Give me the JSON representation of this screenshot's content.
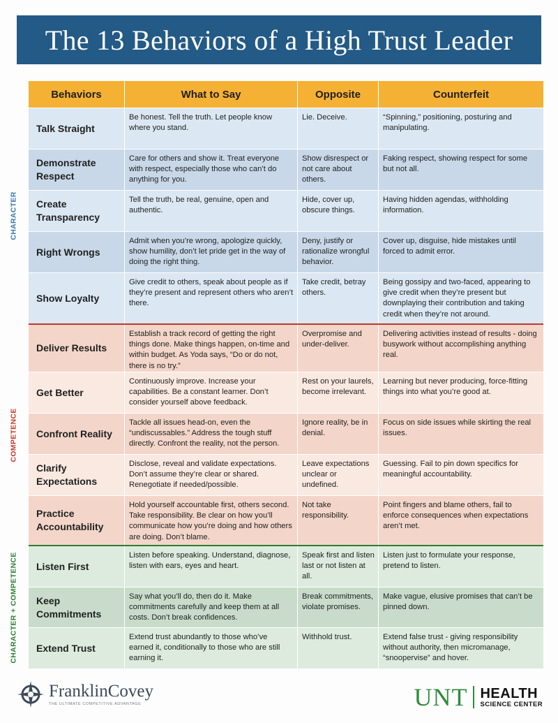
{
  "title": "The 13 Behaviors of a High Trust Leader",
  "headers": [
    "Behaviors",
    "What to Say",
    "Opposite",
    "Counterfeit"
  ],
  "side_labels": {
    "character": "CHARACTER",
    "competence": "COMPETENCE",
    "both": "CHARACTER + COMPETENCE"
  },
  "rows": [
    {
      "behavior": "Talk Straight",
      "say": "Be honest. Tell the truth. Let people know where you stand.",
      "opposite": "Lie. Deceive.",
      "counterfeit": "“Spinning,” positioning, posturing and manipulating."
    },
    {
      "behavior": "Demonstrate Respect",
      "say": "Care for others and show it. Treat everyone with respect, especially those who can’t do anything for you.",
      "opposite": "Show disrespect or not care about others.",
      "counterfeit": "Faking respect, showing respect for some but not all."
    },
    {
      "behavior": "Create Transparency",
      "say": "Tell the truth, be real, genuine, open and authentic.",
      "opposite": "Hide, cover up, obscure things.",
      "counterfeit": "Having hidden agendas, withholding information."
    },
    {
      "behavior": "Right Wrongs",
      "say": "Admit when you’re wrong, apologize quickly, show humility, don’t let pride get in the way of doing the right thing.",
      "opposite": "Deny, justify or rationalize wrongful behavior.",
      "counterfeit": "Cover up, disguise, hide mistakes until forced to admit error."
    },
    {
      "behavior": "Show Loyalty",
      "say": "Give credit to others, speak about people as if they’re present and represent others who aren’t there.",
      "opposite": "Take credit, betray others.",
      "counterfeit": "Being gossipy and two-faced, appearing to give credit when they’re present but downplaying their contribution and taking credit when they’re not around."
    },
    {
      "behavior": "Deliver Results",
      "say": "Establish a track record of getting the right things done. Make things happen, on-time and within budget. As Yoda says, “Do or do not, there is no try.”",
      "opposite": "Overpromise and under-deliver.",
      "counterfeit": "Delivering activities instead of results - doing busywork without accomplishing anything real."
    },
    {
      "behavior": "Get Better",
      "say": "Continuously improve. Increase your capabilities. Be a constant learner. Don’t consider yourself above feedback.",
      "opposite": "Rest on your laurels, become irrelevant.",
      "counterfeit": "Learning but never producing, force-fitting things into what you’re good at."
    },
    {
      "behavior": "Confront Reality",
      "say": "Tackle all issues head-on, even the “undiscussables.” Address the tough stuff directly. Confront the reality, not the person.",
      "opposite": "Ignore reality, be in denial.",
      "counterfeit": "Focus on side issues while skirting the real issues."
    },
    {
      "behavior": "Clarify Expectations",
      "say": "Disclose, reveal and validate expectations. Don’t assume they’re clear or shared. Renegotiate if needed/possible.",
      "opposite": "Leave expectations unclear or undefined.",
      "counterfeit": "Guessing. Fail to pin down specifics for meaningful accountability."
    },
    {
      "behavior": "Practice Accountability",
      "say": "Hold yourself accountable first, others second. Take responsibility. Be clear on how you’ll communicate how you’re doing and how others are doing. Don’t blame.",
      "opposite": "Not take responsibility.",
      "counterfeit": "Point fingers and blame others, fail to enforce consequences when expectations aren’t met."
    },
    {
      "behavior": "Listen First",
      "say": "Listen before speaking. Understand, diagnose, listen with ears, eyes and heart.",
      "opposite": "Speak first and listen last or not listen at all.",
      "counterfeit": "Listen just to formulate your response, pretend to listen."
    },
    {
      "behavior": "Keep Commitments",
      "say": "Say what you’ll do, then do it. Make commitments carefully and keep them at all costs. Don’t break confidences.",
      "opposite": "Break commitments, violate promises.",
      "counterfeit": "Make vague, elusive promises that can’t be pinned down."
    },
    {
      "behavior": "Extend Trust",
      "say": "Extend trust abundantly to those who’ve earned it, conditionally to those who are still earning it.",
      "opposite": "Withhold trust.",
      "counterfeit": "Extend false trust - giving responsibility without authority, then micromanage, “snoopervise” and hover."
    }
  ],
  "footer": {
    "franklin_name": "FranklinCovey",
    "franklin_tagline": "THE ULTIMATE COMPETITIVE ADVANTAGE",
    "unt": "UNT",
    "hsc_line1": "HEALTH",
    "hsc_line2": "SCIENCE CENTER"
  },
  "colors": {
    "title_bg": "#235a86",
    "header_bg": "#f4b134",
    "character": "#3a78a8",
    "competence": "#c0392b",
    "both": "#2e7d32"
  }
}
